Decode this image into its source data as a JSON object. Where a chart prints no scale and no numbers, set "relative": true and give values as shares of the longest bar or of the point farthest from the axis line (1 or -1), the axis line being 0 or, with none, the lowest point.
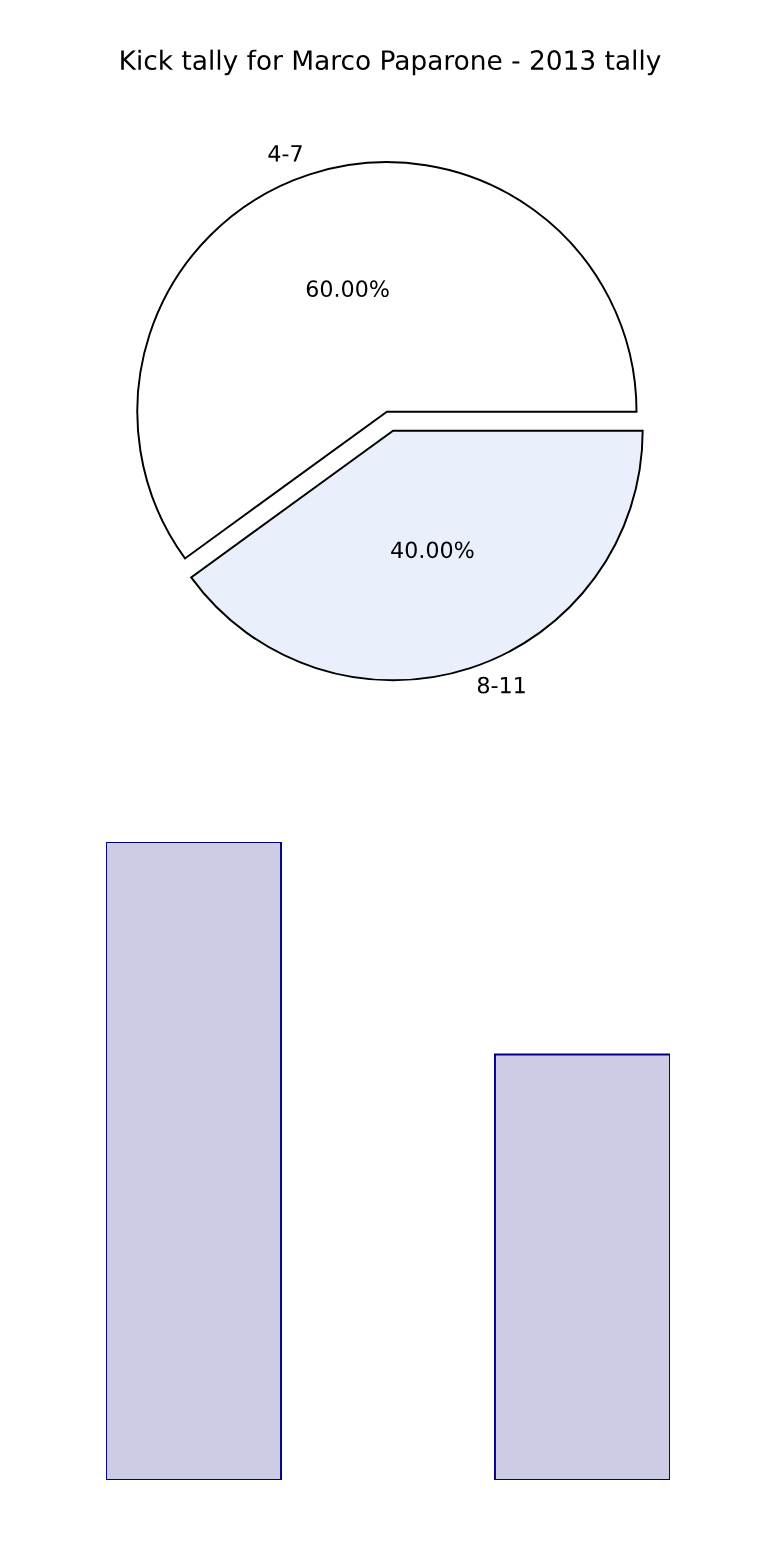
{
  "chart_data": [
    {
      "type": "pie",
      "title": "Kick tally for Marco Paparone - 2013 tally",
      "categories": [
        "4-7",
        "8-11"
      ],
      "values": [
        60,
        40
      ],
      "colors": [
        "#ffffff",
        "#eaf0fb"
      ],
      "value_labels": [
        "60.00%",
        "40.00%"
      ]
    },
    {
      "type": "bar",
      "categories": [
        null,
        null
      ],
      "values": [
        1,
        0.667
      ],
      "color": "#ccccE5",
      "relative": true
    }
  ]
}
